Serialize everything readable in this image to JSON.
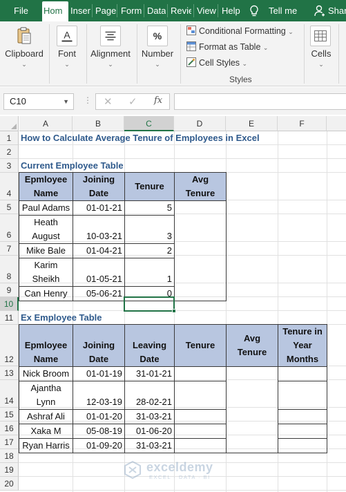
{
  "ribbon_tabs": [
    "File",
    "Hom",
    "Inseri",
    "Page",
    "Form",
    "Data",
    "Revie",
    "View",
    "Help"
  ],
  "active_tab": "Hom",
  "tell_me": "Tell me",
  "share": "Share",
  "ribbon": {
    "clipboard": "Clipboard",
    "font": "Font",
    "alignment": "Alignment",
    "number": "Number",
    "conditional_formatting": "Conditional Formatting",
    "format_as_table": "Format as Table",
    "cell_styles": "Cell Styles",
    "styles_group": "Styles",
    "cells": "Cells",
    "number_icon_glyph": "%"
  },
  "formula_bar": {
    "name_box": "C10",
    "formula": ""
  },
  "columns": [
    "A",
    "B",
    "C",
    "D",
    "E",
    "F"
  ],
  "selected_column": "C",
  "rows": [
    "1",
    "2",
    "3",
    "4",
    "5",
    "6",
    "7",
    "8",
    "9",
    "10",
    "11",
    "12",
    "13",
    "14",
    "15",
    "16",
    "17",
    "18",
    "19",
    "20"
  ],
  "selected_row": "10",
  "sheet": {
    "title": "How to Calculate Average Tenure of Employees in Excel",
    "current_table_title": "Current Employee Table",
    "current_headers": [
      "Epmloyee Name",
      "Joining Date",
      "Tenure",
      "Avg Tenure"
    ],
    "current_rows": [
      {
        "name": "Paul Adams",
        "joining": "01-01-21",
        "tenure": "5"
      },
      {
        "name": "Heath August",
        "joining": "10-03-21",
        "tenure": "3"
      },
      {
        "name": "Mike Bale",
        "joining": "01-04-21",
        "tenure": "2"
      },
      {
        "name": "Karim Sheikh",
        "joining": "01-05-21",
        "tenure": "1"
      },
      {
        "name": "Can Henry",
        "joining": "05-06-21",
        "tenure": "0"
      }
    ],
    "ex_table_title": "Ex Employee Table",
    "ex_headers": [
      "Epmloyee Name",
      "Joining Date",
      "Leaving Date",
      "Tenure",
      "Avg Tenure",
      "Tenure in Year Months"
    ],
    "ex_rows": [
      {
        "name": "Nick Broom",
        "joining": "01-01-19",
        "leaving": "31-01-21"
      },
      {
        "name": "Ajantha Lynn",
        "joining": "12-03-19",
        "leaving": "28-02-21"
      },
      {
        "name": "Ashraf Ali",
        "joining": "01-01-20",
        "leaving": "31-03-21"
      },
      {
        "name": "Xaka M",
        "joining": "05-08-19",
        "leaving": "01-06-20"
      },
      {
        "name": "Ryan Harris",
        "joining": "01-09-20",
        "leaving": "31-03-21"
      }
    ]
  },
  "watermark": {
    "name": "exceldemy",
    "sub": "EXCEL · DATA · BI"
  },
  "colors": {
    "excel_green": "#217346",
    "header_fill": "#b8c6e0",
    "title_blue": "#2f5a8c"
  }
}
